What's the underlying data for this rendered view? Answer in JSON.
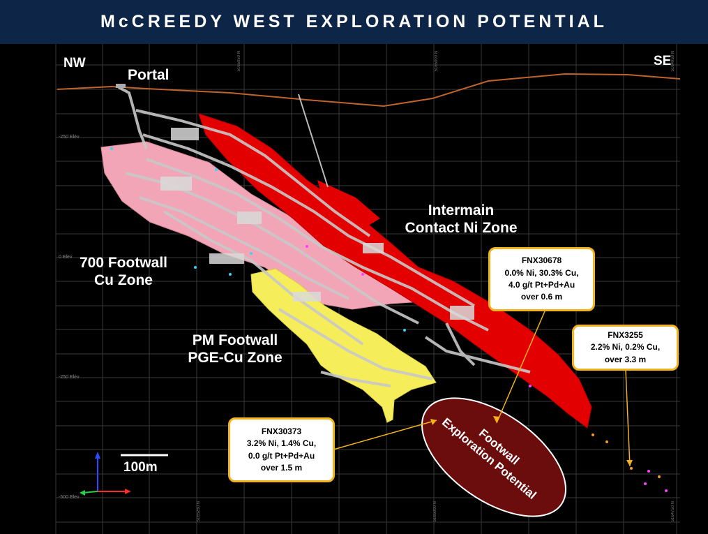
{
  "title": "McCREEDY WEST EXPLORATION POTENTIAL",
  "direction": {
    "left": "NW",
    "right": "SE"
  },
  "labels": {
    "portal": "Portal",
    "intermain": "Intermain\nContact Ni Zone",
    "footwall700": "700 Footwall\nCu Zone",
    "pm_footwall": "PM Footwall\nPGE-Cu Zone",
    "scale_bar": "100m"
  },
  "ellipse": {
    "text": "Footwall\nExploration Potential",
    "color": "#6b0d0d"
  },
  "callouts": [
    {
      "id": "FNX30678",
      "lines": [
        "FNX30678",
        "0.0% Ni, 30.3% Cu,",
        "4.0 g/t Pt+Pd+Au",
        "over 0.6 m"
      ]
    },
    {
      "id": "FNX3255",
      "lines": [
        "FNX3255",
        "2.2% Ni, 0.2% Cu,",
        "over 3.3 m"
      ]
    },
    {
      "id": "FNX30373",
      "lines": [
        "FNX30373",
        "3.2% Ni, 1.4% Cu,",
        "0.0 g/t Pt+Pd+Au",
        "over 1.5 m"
      ]
    }
  ],
  "elevation_labels": [
    "-250 Elev",
    "0 Elev",
    "-250 Elev",
    "-500 Elev"
  ],
  "northing_labels": [
    "5165050 N",
    "5165000 N",
    "5164950 N",
    "5165250 N",
    "5165000 N",
    "5164750 N"
  ],
  "colors": {
    "header_bg": "#0d2547",
    "surface_line": "#c0642c",
    "intermain_zone": "#e30000",
    "footwall_700_zone": "#f2a5b6",
    "pm_footwall_zone": "#f5ee5a",
    "workings": "#c8c8c8",
    "callout_border": "#f3b31a",
    "grid": "#3a3a3a"
  },
  "icons": {
    "axes": "xyz-axes-icon"
  }
}
